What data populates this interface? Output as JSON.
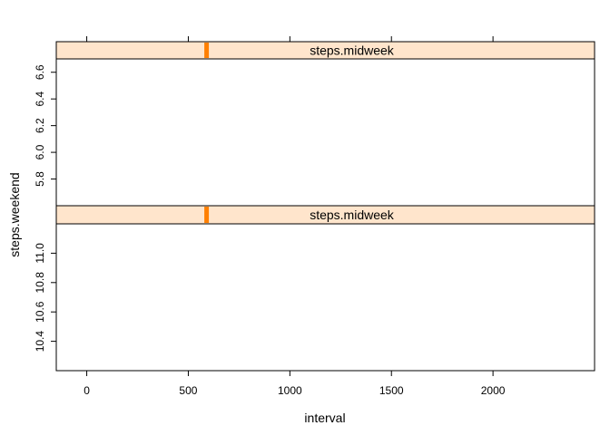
{
  "chart_data": {
    "type": "scatter",
    "xlabel": "interval",
    "ylabel": "steps.weekend",
    "xlim": [
      -150,
      2500
    ],
    "x_ticks": [
      0,
      500,
      1000,
      1500,
      2000
    ],
    "x_tick_labels": [
      "0",
      "500",
      "1000",
      "1500",
      "2000"
    ],
    "strip_fill": "#ffe5cc",
    "strip_marker_color": "#ff7f00",
    "panels": [
      {
        "strip_label": "steps.midweek",
        "strip_marker_x": 590,
        "ylim": [
          5.6,
          6.7
        ],
        "y_ticks": [
          5.8,
          6.0,
          6.2,
          6.4,
          6.6
        ],
        "y_tick_labels": [
          "5.8",
          "6.0",
          "6.2",
          "6.4",
          "6.6"
        ],
        "points": []
      },
      {
        "strip_label": "steps.midweek",
        "strip_marker_x": 590,
        "ylim": [
          10.2,
          11.2
        ],
        "y_ticks": [
          10.4,
          10.6,
          10.8,
          11.0
        ],
        "y_tick_labels": [
          "10.4",
          "10.6",
          "10.8",
          "11.0"
        ],
        "points": []
      }
    ]
  }
}
